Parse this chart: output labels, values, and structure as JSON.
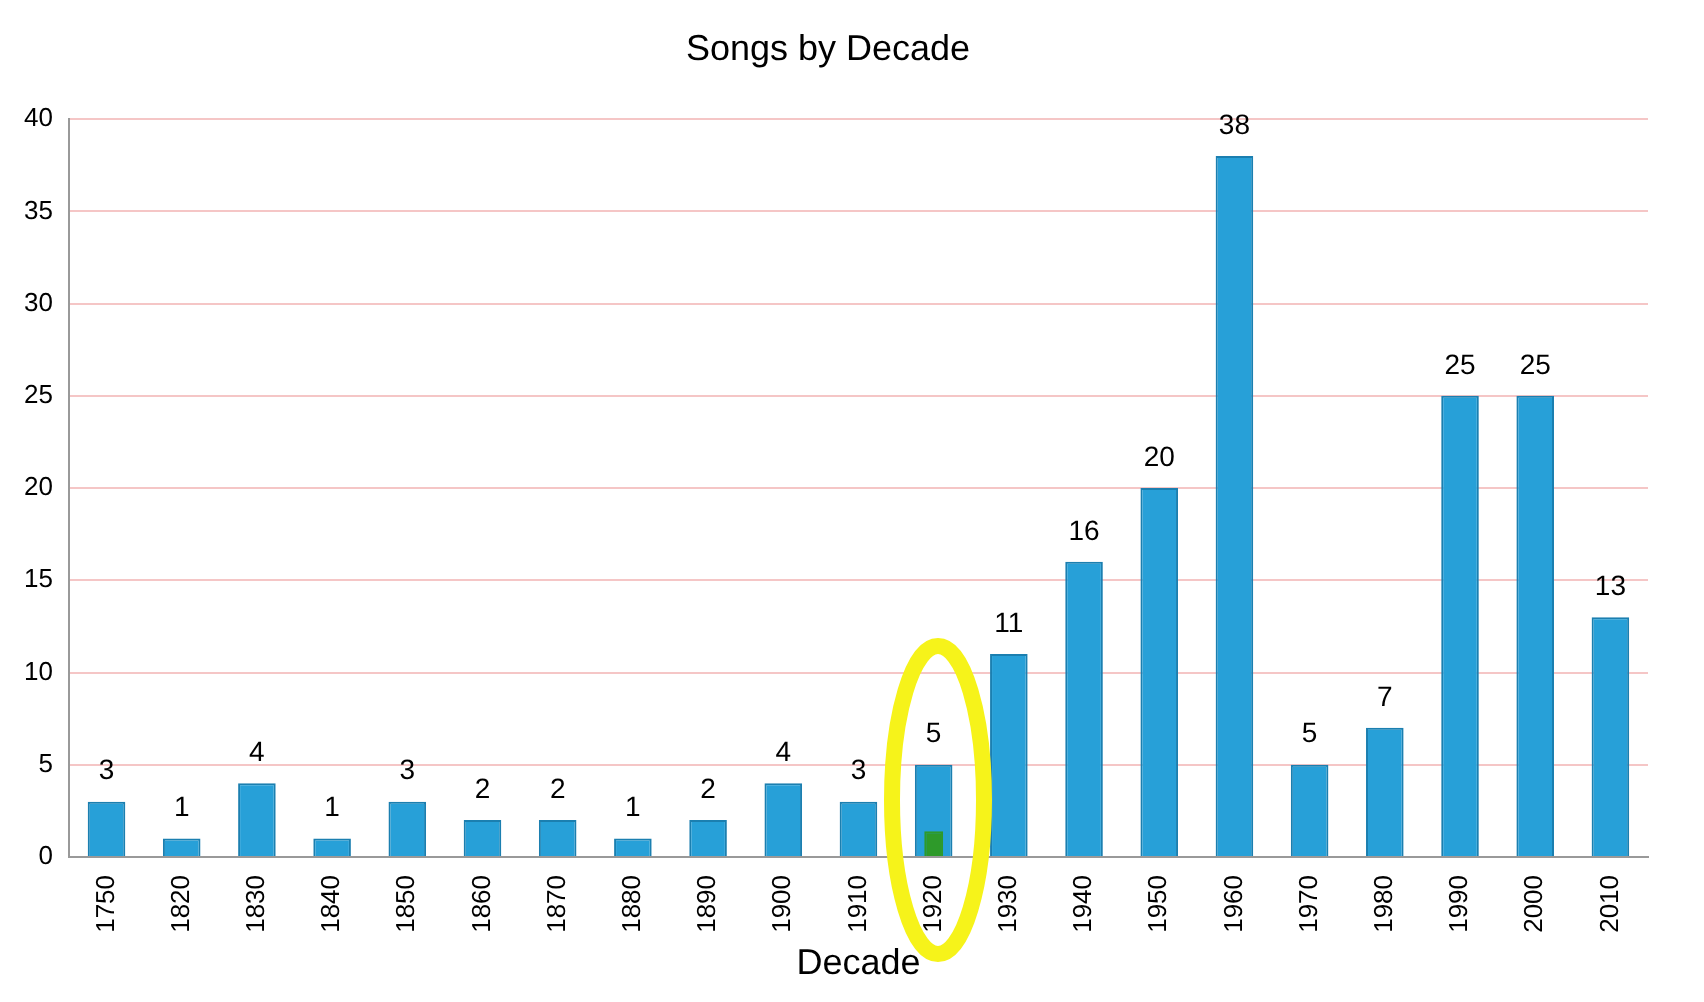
{
  "chart_data": {
    "type": "bar",
    "title": "Songs by Decade",
    "xlabel": "Decade",
    "categories": [
      "1750",
      "1820",
      "1830",
      "1840",
      "1850",
      "1860",
      "1870",
      "1880",
      "1890",
      "1900",
      "1910",
      "1920",
      "1930",
      "1940",
      "1950",
      "1960",
      "1970",
      "1980",
      "1990",
      "2000",
      "2010"
    ],
    "series": [
      {
        "color": "#27a0d8",
        "values": [
          3,
          1,
          4,
          1,
          3,
          2,
          2,
          1,
          2,
          4,
          3,
          5,
          11,
          16,
          20,
          38,
          5,
          7,
          25,
          25,
          13
        ],
        "value_labels": [
          "3",
          "1",
          "4",
          "1",
          "3",
          "2",
          "2",
          "1",
          "2",
          "4",
          "3",
          "5",
          "11",
          "16",
          "20",
          "38",
          "5",
          "7",
          "25",
          "25",
          "13"
        ]
      },
      {
        "color": "#2e9a2a",
        "values": [
          null,
          null,
          null,
          null,
          null,
          null,
          null,
          null,
          null,
          null,
          null,
          1.4,
          null,
          null,
          null,
          null,
          null,
          null,
          null,
          null,
          null
        ]
      }
    ],
    "ylim": [
      0,
      40
    ],
    "yticks": [
      0,
      5,
      10,
      15,
      20,
      25,
      30,
      35,
      40
    ],
    "grid": "y",
    "legend": false
  }
}
